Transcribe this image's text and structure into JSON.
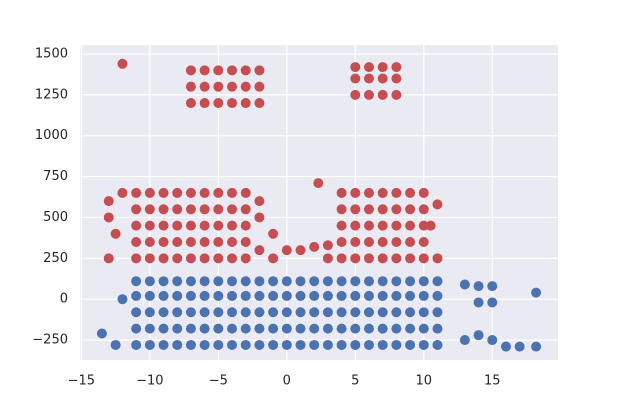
{
  "chart_data": {
    "type": "scatter",
    "xlim": [
      -15.1,
      19.8
    ],
    "ylim": [
      -372,
      1555
    ],
    "xticks": [
      {
        "value": -15,
        "label": "−15"
      },
      {
        "value": -10,
        "label": "−10"
      },
      {
        "value": -5,
        "label": "−5"
      },
      0,
      5,
      10,
      15
    ],
    "yticks": [
      {
        "value": -250,
        "label": "−250"
      },
      0,
      250,
      500,
      750,
      1000,
      1250,
      1500
    ],
    "grid": true,
    "series": [
      {
        "color": "#c44e52",
        "x": [
          -11,
          -10,
          -9,
          -8,
          -7,
          -6,
          -5,
          -4,
          -3,
          4,
          5,
          6,
          7,
          8,
          9,
          10,
          -11,
          -10,
          -9,
          -8,
          -7,
          -6,
          -5,
          -4,
          -3,
          4,
          5,
          6,
          7,
          8,
          9,
          10,
          -11,
          -10,
          -9,
          -8,
          -7,
          -6,
          -5,
          -4,
          -3,
          4,
          5,
          6,
          7,
          8,
          9,
          10,
          -11,
          -10,
          -9,
          -8,
          -7,
          -6,
          -5,
          -4,
          -3,
          4,
          5,
          6,
          7,
          8,
          9,
          10,
          -11,
          -10,
          -9,
          -8,
          -7,
          -6,
          -5,
          -4,
          -3,
          4,
          5,
          6,
          7,
          8,
          9,
          10,
          -12,
          -13,
          -13,
          -13,
          -12.5,
          -2,
          -2,
          -2,
          -1,
          -1,
          0,
          1,
          2,
          3,
          3,
          2.3,
          11,
          11,
          10.5,
          -7,
          -6,
          -5,
          -4,
          -3,
          -2,
          -7,
          -6,
          -5,
          -4,
          -3,
          -2,
          -7,
          -6,
          -5,
          -4,
          -3,
          -2,
          5,
          6,
          7,
          8,
          5,
          6,
          7,
          8,
          5,
          6,
          7,
          8,
          -12
        ],
        "values": [
          250,
          250,
          250,
          250,
          250,
          250,
          250,
          250,
          250,
          250,
          250,
          250,
          250,
          250,
          250,
          250,
          350,
          350,
          350,
          350,
          350,
          350,
          350,
          350,
          350,
          350,
          350,
          350,
          350,
          350,
          350,
          350,
          450,
          450,
          450,
          450,
          450,
          450,
          450,
          450,
          450,
          450,
          450,
          450,
          450,
          450,
          450,
          450,
          550,
          550,
          550,
          550,
          550,
          550,
          550,
          550,
          550,
          550,
          550,
          550,
          550,
          550,
          550,
          550,
          650,
          650,
          650,
          650,
          650,
          650,
          650,
          650,
          650,
          650,
          650,
          650,
          650,
          650,
          650,
          650,
          650,
          600,
          500,
          250,
          400,
          300,
          500,
          600,
          250,
          400,
          300,
          300,
          320,
          330,
          250,
          710,
          580,
          250,
          450,
          1200,
          1200,
          1200,
          1200,
          1200,
          1200,
          1300,
          1300,
          1300,
          1300,
          1300,
          1300,
          1400,
          1400,
          1400,
          1400,
          1400,
          1400,
          1250,
          1250,
          1250,
          1250,
          1350,
          1350,
          1350,
          1350,
          1420,
          1420,
          1420,
          1420,
          1440
        ]
      },
      {
        "color": "#4c72b0",
        "x": [
          -11,
          -10,
          -9,
          -8,
          -7,
          -6,
          -5,
          -4,
          -3,
          -2,
          -1,
          0,
          1,
          2,
          3,
          4,
          5,
          6,
          7,
          8,
          9,
          10,
          11,
          -11,
          -10,
          -9,
          -8,
          -7,
          -6,
          -5,
          -4,
          -3,
          -2,
          -1,
          0,
          1,
          2,
          3,
          4,
          5,
          6,
          7,
          8,
          9,
          10,
          11,
          -11,
          -10,
          -9,
          -8,
          -7,
          -6,
          -5,
          -4,
          -3,
          -2,
          -1,
          0,
          1,
          2,
          3,
          4,
          5,
          6,
          7,
          8,
          9,
          10,
          11,
          -11,
          -10,
          -9,
          -8,
          -7,
          -6,
          -5,
          -4,
          -3,
          -2,
          -1,
          0,
          1,
          2,
          3,
          4,
          5,
          6,
          7,
          8,
          9,
          10,
          11,
          -11,
          -10,
          -9,
          -8,
          -7,
          -6,
          -5,
          -4,
          -3,
          -2,
          -1,
          0,
          1,
          2,
          3,
          4,
          5,
          6,
          7,
          8,
          9,
          10,
          11,
          -13.5,
          -12.5,
          -12,
          13,
          14,
          15,
          14,
          15,
          14,
          15,
          16,
          17,
          18.2,
          18.2,
          13
        ],
        "values": [
          -280,
          -280,
          -280,
          -280,
          -280,
          -280,
          -280,
          -280,
          -280,
          -280,
          -280,
          -280,
          -280,
          -280,
          -280,
          -280,
          -280,
          -280,
          -280,
          -280,
          -280,
          -280,
          -280,
          -180,
          -180,
          -180,
          -180,
          -180,
          -180,
          -180,
          -180,
          -180,
          -180,
          -180,
          -180,
          -180,
          -180,
          -180,
          -180,
          -180,
          -180,
          -180,
          -180,
          -180,
          -180,
          -180,
          -80,
          -80,
          -80,
          -80,
          -80,
          -80,
          -80,
          -80,
          -80,
          -80,
          -80,
          -80,
          -80,
          -80,
          -80,
          -80,
          -80,
          -80,
          -80,
          -80,
          -80,
          -80,
          -80,
          20,
          20,
          20,
          20,
          20,
          20,
          20,
          20,
          20,
          20,
          20,
          20,
          20,
          20,
          20,
          20,
          20,
          20,
          20,
          20,
          20,
          20,
          20,
          110,
          110,
          110,
          110,
          110,
          110,
          110,
          110,
          110,
          110,
          110,
          110,
          110,
          110,
          110,
          110,
          110,
          110,
          110,
          110,
          110,
          110,
          110,
          -210,
          -280,
          0,
          90,
          80,
          80,
          -20,
          -20,
          -220,
          -250,
          -290,
          -290,
          40,
          -290,
          -250
        ]
      }
    ]
  }
}
